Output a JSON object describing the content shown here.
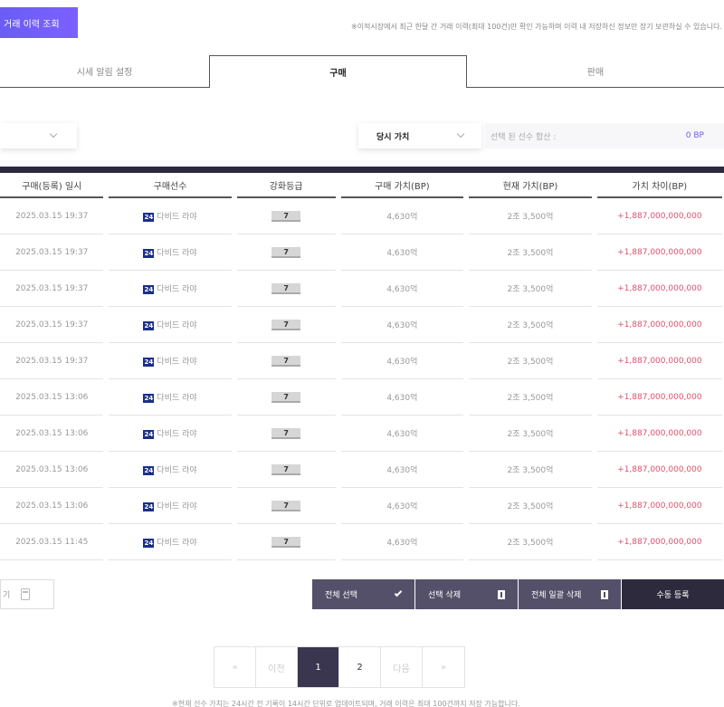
{
  "header": {
    "history_button": "거래 이력 조회",
    "notice": "※이적시장에서 최근 한달 간 거래 이력(최대 100건)만 확인 가능하며 이력 내 저장하신 정보만 장기 보관하실 수 있습니다."
  },
  "tabs": [
    {
      "label": "시세 알림 설정",
      "active": false
    },
    {
      "label": "구매",
      "active": true
    },
    {
      "label": "판매",
      "active": false
    }
  ],
  "filters": {
    "value_type": "당시 가치",
    "selected_total_label": "선택 된 선수 합산 :",
    "selected_total_value": "0 BP"
  },
  "table": {
    "columns": [
      "구매(등록) 일시",
      "구매선수",
      "강화등급",
      "구매 가치(BP)",
      "현재 가치(BP)",
      "가치 차이(BP)"
    ],
    "rows": [
      {
        "date": "2025.03.15 19:37",
        "season": "24",
        "player": "다비드 라야",
        "grade": "7",
        "buy": "4,630억",
        "current": "2조 3,500억",
        "diff": "+1,887,000,000,000"
      },
      {
        "date": "2025.03.15 19:37",
        "season": "24",
        "player": "다비드 라야",
        "grade": "7",
        "buy": "4,630억",
        "current": "2조 3,500억",
        "diff": "+1,887,000,000,000"
      },
      {
        "date": "2025.03.15 19:37",
        "season": "24",
        "player": "다비드 라야",
        "grade": "7",
        "buy": "4,630억",
        "current": "2조 3,500억",
        "diff": "+1,887,000,000,000"
      },
      {
        "date": "2025.03.15 19:37",
        "season": "24",
        "player": "다비드 라야",
        "grade": "7",
        "buy": "4,630억",
        "current": "2조 3,500억",
        "diff": "+1,887,000,000,000"
      },
      {
        "date": "2025.03.15 19:37",
        "season": "24",
        "player": "다비드 라야",
        "grade": "7",
        "buy": "4,630억",
        "current": "2조 3,500억",
        "diff": "+1,887,000,000,000"
      },
      {
        "date": "2025.03.15 13:06",
        "season": "24",
        "player": "다비드 라야",
        "grade": "7",
        "buy": "4,630억",
        "current": "2조 3,500억",
        "diff": "+1,887,000,000,000"
      },
      {
        "date": "2025.03.15 13:06",
        "season": "24",
        "player": "다비드 라야",
        "grade": "7",
        "buy": "4,630억",
        "current": "2조 3,500억",
        "diff": "+1,887,000,000,000"
      },
      {
        "date": "2025.03.15 13:06",
        "season": "24",
        "player": "다비드 라야",
        "grade": "7",
        "buy": "4,630억",
        "current": "2조 3,500억",
        "diff": "+1,887,000,000,000"
      },
      {
        "date": "2025.03.15 13:06",
        "season": "24",
        "player": "다비드 라야",
        "grade": "7",
        "buy": "4,630억",
        "current": "2조 3,500억",
        "diff": "+1,887,000,000,000"
      },
      {
        "date": "2025.03.15 11:45",
        "season": "24",
        "player": "다비드 라야",
        "grade": "7",
        "buy": "4,630억",
        "current": "2조 3,500억",
        "diff": "+1,887,000,000,000"
      }
    ]
  },
  "bottom": {
    "calc_label": "기",
    "select_all": "전체 선택",
    "delete_selected": "선택 삭제",
    "delete_all": "전체 일괄 삭제",
    "manual_register": "수동 등록",
    "notice": "※현재 선수 가치는 24시간 전 기록이 14시간 단위로 업데이트되며, 거래 이력은 최대 100건까지 저장 가능합니다."
  },
  "pagination": {
    "first": "«",
    "prev": "이전",
    "pages": [
      "1",
      "2"
    ],
    "current": "1",
    "next": "다음",
    "last": "»"
  },
  "colors": {
    "accent": "#6a5cf5",
    "dark": "#2e2a3e",
    "diff": "#e0506a",
    "season_badge": "#1a2f8a"
  }
}
